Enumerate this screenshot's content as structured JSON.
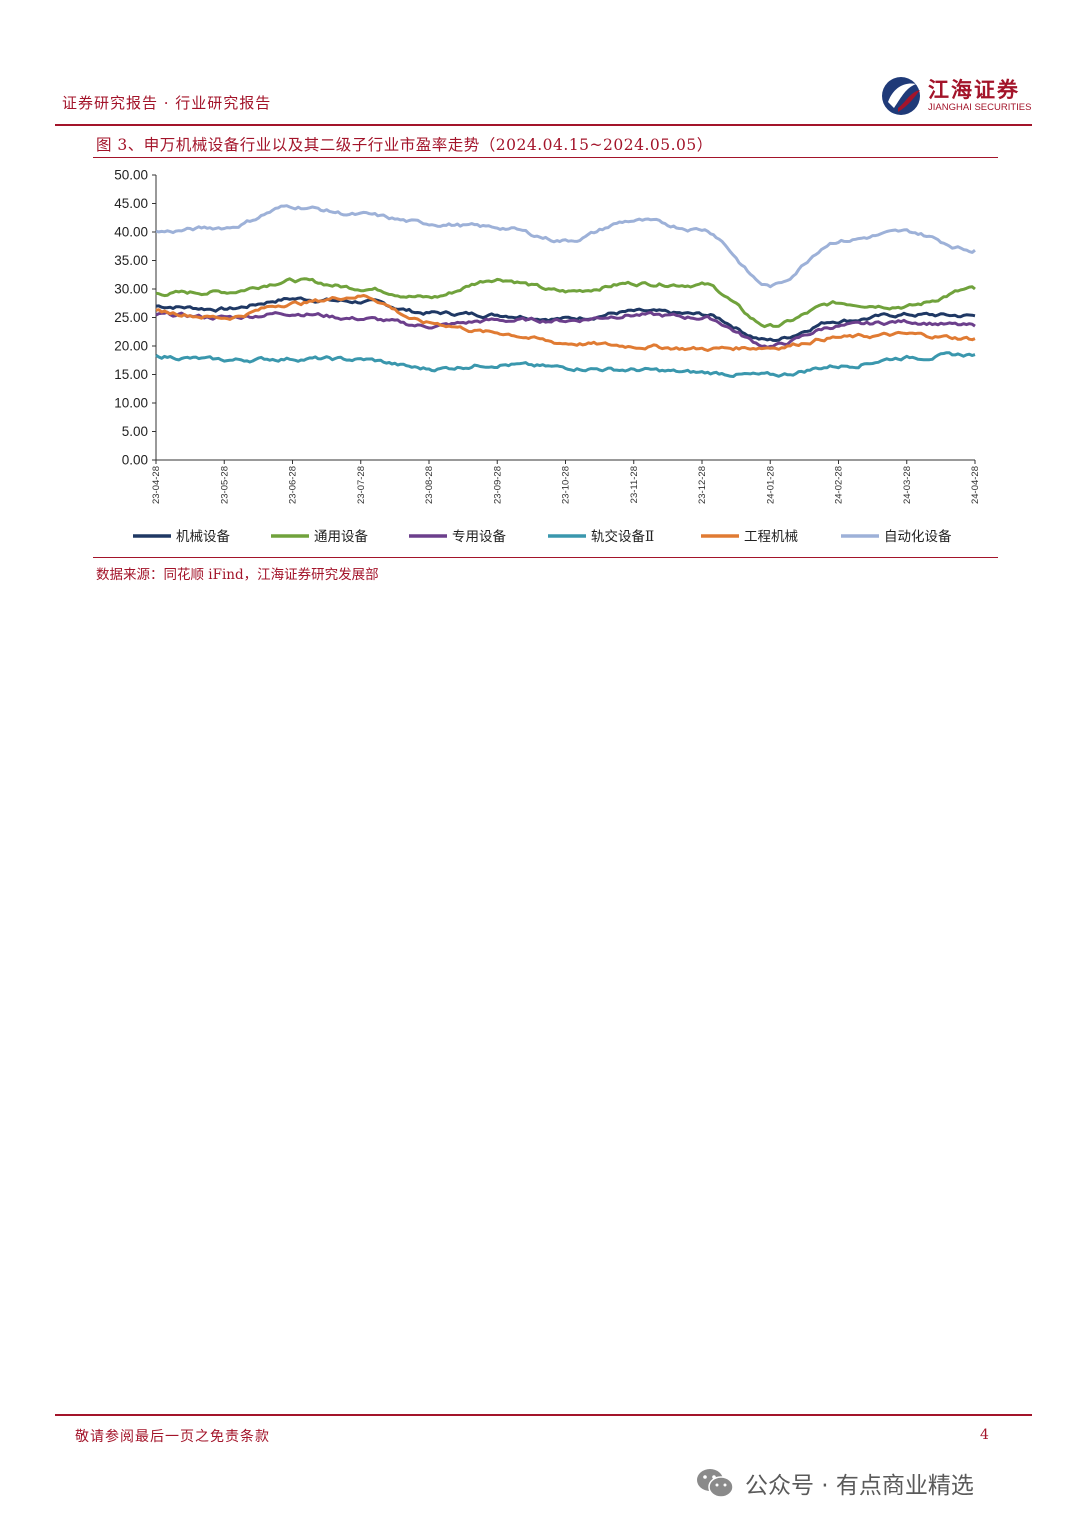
{
  "header": {
    "title": "证券研究报告 · 行业研究报告",
    "logo_cn": "江海证券",
    "logo_en": "JIANGHAI SECURITIES",
    "brand_color": "#a3142a"
  },
  "figure": {
    "title": "图 3、申万机械设备行业以及其二级子行业市盈率走势（2024.04.15~2024.05.05）",
    "source": "数据来源：同花顺 iFind，江海证券研究发展部"
  },
  "chart_data": {
    "type": "line",
    "x": [
      "23-04-28",
      "23-05-28",
      "23-06-28",
      "23-07-28",
      "23-08-28",
      "23-09-28",
      "23-10-28",
      "23-11-28",
      "23-12-28",
      "24-01-28",
      "24-02-28",
      "24-03-28",
      "24-04-28"
    ],
    "yticks": [
      "50.00",
      "45.00",
      "40.00",
      "35.00",
      "30.00",
      "25.00",
      "20.00",
      "15.00",
      "10.00",
      "5.00",
      "0.00"
    ],
    "ylim": [
      0,
      50
    ],
    "grid": false,
    "legend_position": "bottom",
    "series": [
      {
        "name": "机械设备",
        "color": "#1f3864",
        "values": [
          27.0,
          26.5,
          28.3,
          27.8,
          25.8,
          25.5,
          24.8,
          26.0,
          25.5,
          21.0,
          24.5,
          25.5,
          25.3
        ]
      },
      {
        "name": "通用设备",
        "color": "#70a23c",
        "values": [
          29.2,
          29.5,
          31.5,
          30.2,
          28.5,
          31.8,
          29.5,
          31.0,
          30.8,
          23.5,
          27.5,
          27.0,
          30.0
        ]
      },
      {
        "name": "专用设备",
        "color": "#6c3f8c",
        "values": [
          25.5,
          25.0,
          25.8,
          24.8,
          23.5,
          24.5,
          24.5,
          25.5,
          25.0,
          20.0,
          23.5,
          24.3,
          23.5
        ]
      },
      {
        "name": "轨交设备Ⅱ",
        "color": "#3a97ad",
        "values": [
          18.2,
          17.5,
          17.8,
          17.6,
          16.0,
          16.8,
          16.2,
          15.8,
          15.3,
          14.8,
          16.5,
          18.0,
          18.5
        ]
      },
      {
        "name": "工程机械",
        "color": "#e07b33",
        "values": [
          26.0,
          25.0,
          27.5,
          28.8,
          24.0,
          22.3,
          20.5,
          20.0,
          19.5,
          19.8,
          21.5,
          22.0,
          21.3
        ]
      },
      {
        "name": "自动化设备",
        "color": "#9db1d8",
        "values": [
          40.0,
          40.8,
          44.5,
          43.0,
          41.5,
          40.8,
          38.5,
          42.0,
          40.5,
          30.5,
          38.5,
          40.0,
          36.8
        ]
      }
    ]
  },
  "footer": {
    "disclaimer": "敬请参阅最后一页之免责条款",
    "page": "4"
  },
  "watermark": {
    "text": "公众号 · 有点商业精选",
    "icon": "wechat-icon"
  }
}
